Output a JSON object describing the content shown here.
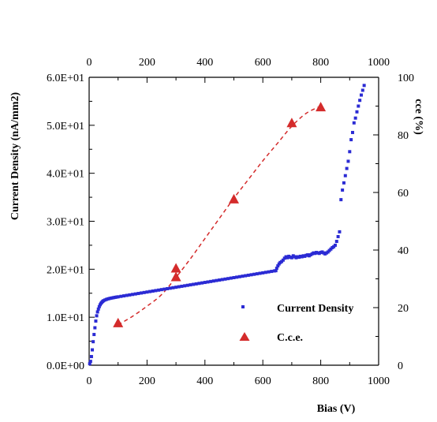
{
  "chart_data": {
    "type": "scatter",
    "title": "",
    "xlabel": "Bias (V)",
    "ylabel": "Current Density (nA/mm2)",
    "y2label": "cce (%)",
    "xlim": [
      0,
      1000
    ],
    "ylim": [
      0,
      60
    ],
    "y2lim": [
      0,
      100
    ],
    "grid": false,
    "legend_position": "bottom-right",
    "x_ticks": [
      "0",
      "200",
      "400",
      "600",
      "800",
      "1000"
    ],
    "top_x_ticks": [
      "0",
      "200",
      "400",
      "600",
      "800",
      "1000"
    ],
    "y_ticks": [
      "0.0E+00",
      "1.0E+01",
      "2.0E+01",
      "3.0E+01",
      "4.0E+01",
      "5.0E+01",
      "6.0E+01"
    ],
    "y2_ticks": [
      "0",
      "20",
      "40",
      "60",
      "80",
      "100"
    ],
    "series": [
      {
        "name": "Current Density",
        "axis": "left",
        "marker": "square",
        "color": "#2b2bd4",
        "points": [
          [
            2,
            0.3
          ],
          [
            5,
            0.8
          ],
          [
            8,
            1.8
          ],
          [
            11,
            3.2
          ],
          [
            14,
            4.9
          ],
          [
            17,
            6.4
          ],
          [
            20,
            7.8
          ],
          [
            23,
            9.2
          ],
          [
            26,
            10.3
          ],
          [
            29,
            11.1
          ],
          [
            32,
            11.7
          ],
          [
            35,
            12.2
          ],
          [
            38,
            12.6
          ],
          [
            41,
            12.9
          ],
          [
            44,
            13.1
          ],
          [
            47,
            13.3
          ],
          [
            50,
            13.45
          ],
          [
            55,
            13.6
          ],
          [
            60,
            13.72
          ],
          [
            65,
            13.82
          ],
          [
            70,
            13.9
          ],
          [
            75,
            13.97
          ],
          [
            80,
            14.03
          ],
          [
            85,
            14.09
          ],
          [
            90,
            14.15
          ],
          [
            95,
            14.2
          ],
          [
            100,
            14.25
          ],
          [
            110,
            14.35
          ],
          [
            120,
            14.45
          ],
          [
            130,
            14.55
          ],
          [
            140,
            14.65
          ],
          [
            150,
            14.75
          ],
          [
            160,
            14.85
          ],
          [
            170,
            14.95
          ],
          [
            180,
            15.05
          ],
          [
            190,
            15.15
          ],
          [
            200,
            15.25
          ],
          [
            210,
            15.35
          ],
          [
            220,
            15.45
          ],
          [
            230,
            15.55
          ],
          [
            240,
            15.65
          ],
          [
            250,
            15.75
          ],
          [
            260,
            15.85
          ],
          [
            270,
            15.95
          ],
          [
            280,
            16.05
          ],
          [
            290,
            16.15
          ],
          [
            300,
            16.25
          ],
          [
            310,
            16.35
          ],
          [
            320,
            16.45
          ],
          [
            330,
            16.55
          ],
          [
            340,
            16.65
          ],
          [
            350,
            16.75
          ],
          [
            360,
            16.85
          ],
          [
            370,
            16.95
          ],
          [
            380,
            17.05
          ],
          [
            390,
            17.15
          ],
          [
            400,
            17.25
          ],
          [
            410,
            17.35
          ],
          [
            420,
            17.45
          ],
          [
            430,
            17.55
          ],
          [
            440,
            17.65
          ],
          [
            450,
            17.75
          ],
          [
            460,
            17.85
          ],
          [
            470,
            17.95
          ],
          [
            480,
            18.05
          ],
          [
            490,
            18.15
          ],
          [
            500,
            18.25
          ],
          [
            510,
            18.35
          ],
          [
            520,
            18.45
          ],
          [
            530,
            18.55
          ],
          [
            540,
            18.65
          ],
          [
            550,
            18.75
          ],
          [
            560,
            18.85
          ],
          [
            570,
            18.95
          ],
          [
            580,
            19.05
          ],
          [
            590,
            19.15
          ],
          [
            600,
            19.25
          ],
          [
            610,
            19.35
          ],
          [
            620,
            19.45
          ],
          [
            630,
            19.55
          ],
          [
            640,
            19.65
          ],
          [
            645,
            19.7
          ],
          [
            648,
            20.2
          ],
          [
            652,
            20.7
          ],
          [
            656,
            21.1
          ],
          [
            660,
            21.4
          ],
          [
            665,
            21.6
          ],
          [
            670,
            21.9
          ],
          [
            675,
            22.3
          ],
          [
            680,
            22.6
          ],
          [
            685,
            22.4
          ],
          [
            690,
            22.7
          ],
          [
            695,
            22.5
          ],
          [
            700,
            22.4
          ],
          [
            705,
            22.8
          ],
          [
            710,
            22.6
          ],
          [
            715,
            22.4
          ],
          [
            720,
            22.6
          ],
          [
            725,
            22.5
          ],
          [
            730,
            22.7
          ],
          [
            735,
            22.6
          ],
          [
            740,
            22.8
          ],
          [
            745,
            22.7
          ],
          [
            750,
            22.9
          ],
          [
            755,
            23.0
          ],
          [
            760,
            22.8
          ],
          [
            765,
            23.0
          ],
          [
            770,
            23.2
          ],
          [
            775,
            23.4
          ],
          [
            780,
            23.3
          ],
          [
            785,
            23.5
          ],
          [
            790,
            23.4
          ],
          [
            795,
            23.3
          ],
          [
            800,
            23.5
          ],
          [
            805,
            23.6
          ],
          [
            810,
            23.4
          ],
          [
            815,
            23.2
          ],
          [
            820,
            23.4
          ],
          [
            825,
            23.6
          ],
          [
            830,
            23.9
          ],
          [
            835,
            24.2
          ],
          [
            840,
            24.5
          ],
          [
            845,
            24.7
          ],
          [
            850,
            25.0
          ],
          [
            855,
            25.8
          ],
          [
            860,
            26.8
          ],
          [
            865,
            27.8
          ],
          [
            870,
            34.5
          ],
          [
            875,
            36.5
          ],
          [
            880,
            38.0
          ],
          [
            885,
            39.5
          ],
          [
            890,
            41.0
          ],
          [
            895,
            42.5
          ],
          [
            900,
            44.5
          ],
          [
            905,
            47.0
          ],
          [
            910,
            48.5
          ],
          [
            915,
            50.5
          ],
          [
            920,
            51.5
          ],
          [
            925,
            52.8
          ],
          [
            930,
            54.0
          ],
          [
            935,
            55.2
          ],
          [
            940,
            56.3
          ],
          [
            945,
            57.3
          ],
          [
            950,
            58.3
          ]
        ]
      },
      {
        "name": "C.c.e.",
        "axis": "right",
        "marker": "triangle",
        "color": "#d42b2b",
        "points": [
          [
            100,
            14.5
          ],
          [
            300,
            30.5
          ],
          [
            300,
            33.5
          ],
          [
            500,
            57.5
          ],
          [
            700,
            84
          ],
          [
            800,
            89.5
          ]
        ]
      }
    ],
    "fit_curve": {
      "axis": "right",
      "style": "dashed",
      "color": "#d42b2b",
      "points": [
        [
          100,
          14
        ],
        [
          150,
          17
        ],
        [
          200,
          20.5
        ],
        [
          250,
          24.5
        ],
        [
          300,
          30.5
        ],
        [
          350,
          37
        ],
        [
          400,
          44
        ],
        [
          450,
          51
        ],
        [
          500,
          58
        ],
        [
          550,
          64.5
        ],
        [
          600,
          71
        ],
        [
          650,
          77
        ],
        [
          700,
          83
        ],
        [
          750,
          87.5
        ],
        [
          800,
          90
        ]
      ]
    }
  }
}
